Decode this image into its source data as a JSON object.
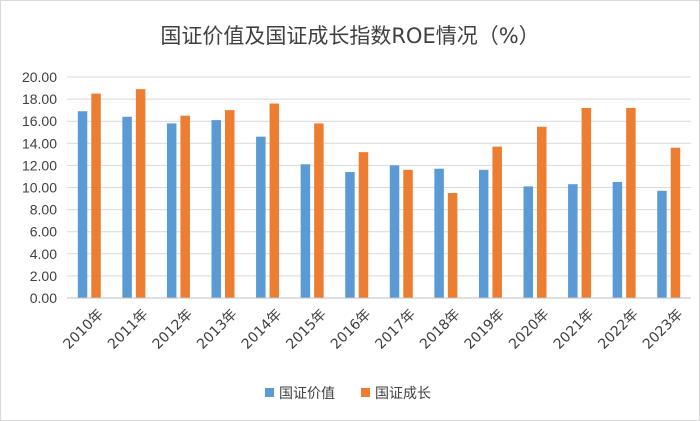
{
  "chart_data": {
    "type": "bar",
    "title": "国证价值及国证成长指数ROE情况（%）",
    "xlabel": "",
    "ylabel": "",
    "ylim": [
      0,
      20
    ],
    "yticks": [
      "0.00",
      "2.00",
      "4.00",
      "6.00",
      "8.00",
      "10.00",
      "12.00",
      "14.00",
      "16.00",
      "18.00",
      "20.00"
    ],
    "grid": true,
    "legend_position": "bottom",
    "categories": [
      "2010年",
      "2011年",
      "2012年",
      "2013年",
      "2014年",
      "2015年",
      "2016年",
      "2017年",
      "2018年",
      "2019年",
      "2020年",
      "2021年",
      "2022年",
      "2023年"
    ],
    "series": [
      {
        "name": "国证价值",
        "color": "#5b9bd5",
        "values": [
          16.9,
          16.4,
          15.8,
          16.1,
          14.6,
          12.1,
          11.4,
          12.0,
          11.7,
          11.6,
          10.1,
          10.3,
          10.5,
          9.7
        ]
      },
      {
        "name": "国证成长",
        "color": "#ed7d31",
        "values": [
          18.5,
          18.9,
          16.5,
          17.0,
          17.6,
          15.8,
          13.2,
          11.6,
          9.5,
          13.7,
          15.5,
          17.2,
          17.2,
          13.6
        ]
      }
    ]
  }
}
